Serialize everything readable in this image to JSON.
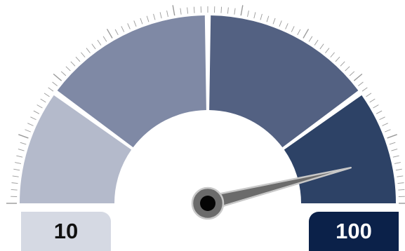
{
  "chart_data": {
    "type": "gauge",
    "min": 10,
    "max": 100,
    "value": 93,
    "min_label": "10",
    "max_label": "100",
    "bands": [
      {
        "from": 10,
        "to": 28,
        "color": "#b4bacb"
      },
      {
        "from": 28,
        "to": 55,
        "color": "#7f89a5"
      },
      {
        "from": 55,
        "to": 82,
        "color": "#536182"
      },
      {
        "from": 82,
        "to": 100,
        "color": "#2d4266"
      }
    ],
    "tick_count": 90,
    "needle_color": "#6b6b6b",
    "hub_color": "#050505",
    "min_label_color": "#d5d9e3",
    "max_label_color": "#0b2149"
  }
}
